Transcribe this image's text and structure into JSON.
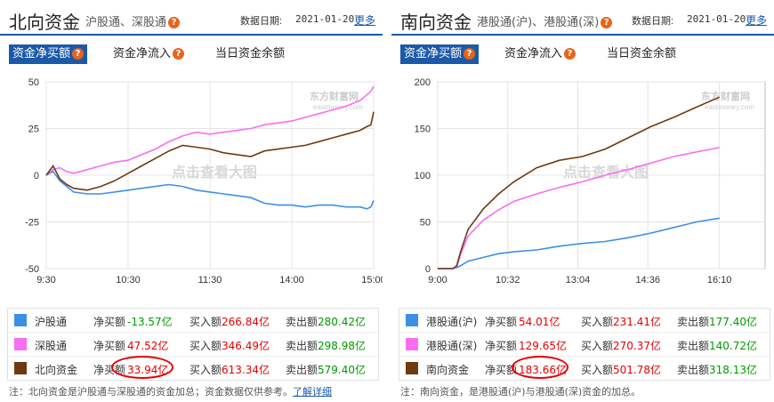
{
  "left": {
    "title": "北向资金",
    "subtitle": "沪股通、深股通",
    "date_label": "数据日期:",
    "date": "2021-01-20",
    "more": "更多",
    "tabs": [
      "资金净买额",
      "资金净流入",
      "当日资金余额"
    ],
    "legend": [
      {
        "name": "沪股通",
        "color": "#3d8fe6",
        "net_label": "净买额",
        "net": "-13.57亿",
        "buy_label": "买入额",
        "buy": "266.84亿",
        "sell_label": "卖出额",
        "sell": "280.42亿"
      },
      {
        "name": "深股通",
        "color": "#f76ff0",
        "net_label": "净买额",
        "net": "47.52亿",
        "buy_label": "买入额",
        "buy": "346.49亿",
        "sell_label": "卖出额",
        "sell": "298.98亿"
      },
      {
        "name": "北向资金",
        "color": "#6e3a12",
        "net_label": "净买额",
        "net": "33.94亿",
        "buy_label": "买入额",
        "buy": "613.34亿",
        "sell_label": "卖出额",
        "sell": "579.40亿"
      }
    ],
    "note_text": "注：北向资金是沪股通与深股通的资金加总；资金数据仅供参考。",
    "note_link": "了解详细"
  },
  "right": {
    "title": "南向资金",
    "subtitle": "港股通(沪)、港股通(深)",
    "date_label": "数据日期:",
    "date": "2021-01-20",
    "more": "更多",
    "tabs": [
      "资金净买额",
      "资金净流入",
      "当日资金余额"
    ],
    "legend": [
      {
        "name": "港股通(沪)",
        "color": "#3d8fe6",
        "net_label": "净买额",
        "net": "54.01亿",
        "buy_label": "买入额",
        "buy": "231.41亿",
        "sell_label": "卖出额",
        "sell": "177.40亿"
      },
      {
        "name": "港股通(深)",
        "color": "#f76ff0",
        "net_label": "净买额",
        "net": "129.65亿",
        "buy_label": "买入额",
        "buy": "270.37亿",
        "sell_label": "卖出额",
        "sell": "140.72亿"
      },
      {
        "name": "南向资金",
        "color": "#6e3a12",
        "net_label": "净买额",
        "net": "183.66亿",
        "buy_label": "买入额",
        "buy": "501.78亿",
        "sell_label": "卖出额",
        "sell": "318.13亿"
      }
    ],
    "note_text": "注：南向资金，是港股通(沪)与港股通(深)资金的加总。"
  },
  "watermark": {
    "brand": "东方财富网",
    "brand_en": "eastmoney.com",
    "center": "点击查看大图"
  },
  "chart_data": [
    {
      "type": "line",
      "ylim": [
        -50,
        50
      ],
      "yticks": [
        -50,
        -25,
        0,
        25,
        50
      ],
      "xlim": [
        0,
        240
      ],
      "xticks": [
        0,
        60,
        120,
        180,
        240
      ],
      "xtick_labels": [
        "9:30",
        "10:30",
        "11:30",
        "14:00",
        "15:00"
      ],
      "grid": true,
      "series": [
        {
          "name": "沪股通",
          "color": "#3d8fe6",
          "x": [
            0,
            5,
            10,
            15,
            20,
            30,
            40,
            50,
            60,
            70,
            80,
            90,
            100,
            110,
            120,
            130,
            140,
            150,
            160,
            170,
            180,
            190,
            200,
            210,
            220,
            230,
            235,
            238,
            240
          ],
          "y": [
            0,
            2,
            -3,
            -6,
            -9,
            -10,
            -10,
            -9,
            -8,
            -7,
            -6,
            -5,
            -6,
            -8,
            -9,
            -10,
            -11,
            -12,
            -15,
            -16,
            -16,
            -17,
            -16,
            -16,
            -17,
            -17,
            -18,
            -17,
            -13.57
          ]
        },
        {
          "name": "深股通",
          "color": "#f76ff0",
          "x": [
            0,
            5,
            10,
            15,
            20,
            30,
            40,
            50,
            60,
            70,
            80,
            90,
            100,
            110,
            120,
            130,
            140,
            150,
            160,
            170,
            180,
            190,
            200,
            210,
            220,
            230,
            235,
            238,
            240
          ],
          "y": [
            0,
            3,
            4,
            2,
            1,
            3,
            5,
            7,
            8,
            11,
            14,
            18,
            21,
            23,
            22,
            23,
            24,
            25,
            27,
            28,
            29,
            31,
            33,
            35,
            37,
            40,
            43,
            45,
            47.52
          ]
        },
        {
          "name": "北向资金",
          "color": "#6e3a12",
          "x": [
            0,
            5,
            10,
            15,
            20,
            30,
            40,
            50,
            60,
            70,
            80,
            90,
            100,
            110,
            120,
            130,
            140,
            150,
            160,
            170,
            180,
            190,
            200,
            210,
            220,
            230,
            235,
            238,
            240
          ],
          "y": [
            0,
            5,
            -2,
            -5,
            -7,
            -8,
            -6,
            -3,
            1,
            5,
            9,
            13,
            16,
            15,
            14,
            12,
            11,
            10,
            13,
            14,
            15,
            16,
            18,
            20,
            22,
            24,
            26,
            27,
            33.94
          ]
        }
      ]
    },
    {
      "type": "line",
      "ylim": [
        0,
        200
      ],
      "yticks": [
        0,
        50,
        100,
        150,
        200
      ],
      "xlim": [
        0,
        430
      ],
      "xticks": [
        0,
        92,
        184,
        276,
        370
      ],
      "xtick_labels": [
        "9:00",
        "10:32",
        "13:04",
        "14:36",
        "16:10"
      ],
      "grid": true,
      "series": [
        {
          "name": "港股通(沪)",
          "color": "#3d8fe6",
          "x": [
            0,
            10,
            20,
            25,
            30,
            40,
            60,
            80,
            100,
            130,
            160,
            190,
            220,
            250,
            280,
            310,
            340,
            370
          ],
          "y": [
            0,
            0,
            0,
            1,
            3,
            8,
            12,
            16,
            18,
            20,
            24,
            27,
            29,
            33,
            38,
            44,
            50,
            54.01
          ]
        },
        {
          "name": "港股通(深)",
          "color": "#f76ff0",
          "x": [
            0,
            10,
            20,
            25,
            30,
            40,
            60,
            80,
            100,
            130,
            160,
            190,
            220,
            250,
            280,
            310,
            340,
            370
          ],
          "y": [
            0,
            0,
            0,
            2,
            15,
            35,
            52,
            63,
            72,
            80,
            87,
            93,
            100,
            106,
            113,
            120,
            125,
            129.65
          ]
        },
        {
          "name": "南向资金",
          "color": "#6e3a12",
          "x": [
            0,
            10,
            20,
            25,
            30,
            40,
            60,
            80,
            100,
            130,
            160,
            190,
            220,
            250,
            280,
            310,
            340,
            370
          ],
          "y": [
            0,
            0,
            0,
            3,
            18,
            42,
            64,
            80,
            93,
            108,
            116,
            120,
            128,
            140,
            152,
            162,
            173,
            183.66
          ]
        }
      ]
    }
  ]
}
